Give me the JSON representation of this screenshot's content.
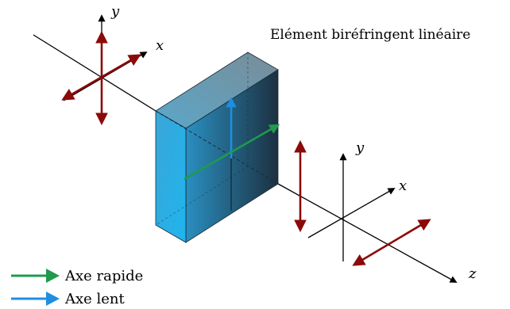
{
  "title": "Elément biréfringent linéaire",
  "axes": {
    "left": {
      "x": "x",
      "y": "y"
    },
    "right": {
      "x": "x",
      "y": "y",
      "z": "z"
    }
  },
  "legend": [
    {
      "label": "Axe rapide",
      "color": "#1f9a4e",
      "icon": "green-arrow-icon"
    },
    {
      "label": "Axe lent",
      "color": "#1e8fe0",
      "icon": "blue-arrow-icon"
    }
  ],
  "colors": {
    "axis": "#000000",
    "polarization": "#8b0a0a",
    "fast_axis": "#1f9a4e",
    "slow_axis": "#1e8fe0",
    "crystal_front": "#29a9e8",
    "crystal_side": "#22384a"
  }
}
